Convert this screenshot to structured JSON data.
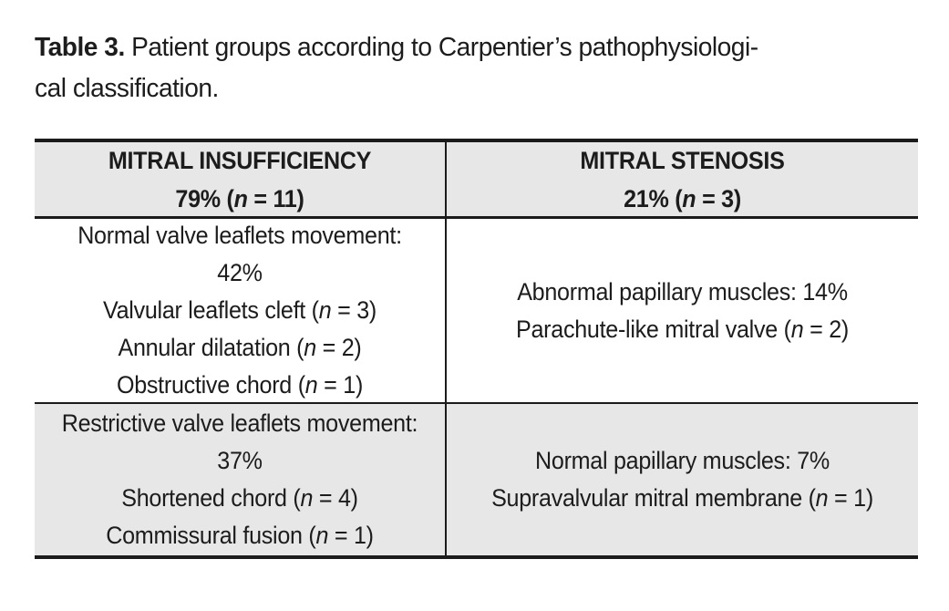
{
  "colors": {
    "text": "#1c1c1c",
    "border": "#1b1b1b",
    "header_bg": "#e7e7e8",
    "alt_row_bg": "#e7e7e8",
    "page_bg": "#ffffff"
  },
  "caption": {
    "lines": [
      [
        {
          "t": "Table 3.",
          "b": true
        },
        {
          "t": " Patient groups according to Carpentier’s pathophysiologi-"
        }
      ],
      [
        {
          "t": "cal classification."
        }
      ]
    ]
  },
  "table": {
    "header": [
      {
        "lines": [
          [
            {
              "t": "MITRAL INSUFFICIENCY"
            }
          ],
          [
            {
              "t": "79% ("
            },
            {
              "t": "n",
              "i": true
            },
            {
              "t": " = 11)"
            }
          ]
        ]
      },
      {
        "lines": [
          [
            {
              "t": "MITRAL STENOSIS"
            }
          ],
          [
            {
              "t": "21% ("
            },
            {
              "t": "n",
              "i": true
            },
            {
              "t": " = 3)"
            }
          ]
        ]
      }
    ],
    "rows": [
      {
        "cells": [
          {
            "lines": [
              [
                {
                  "t": "Normal valve leaflets movement:"
                }
              ],
              [
                {
                  "t": "42%"
                }
              ],
              [
                {
                  "t": "Valvular leaflets cleft ("
                },
                {
                  "t": "n",
                  "i": true
                },
                {
                  "t": " = 3)"
                }
              ],
              [
                {
                  "t": "Annular dilatation ("
                },
                {
                  "t": "n",
                  "i": true
                },
                {
                  "t": " = 2)"
                }
              ],
              [
                {
                  "t": "Obstructive chord ("
                },
                {
                  "t": "n",
                  "i": true
                },
                {
                  "t": " = 1)"
                }
              ]
            ]
          },
          {
            "lines": [
              [
                {
                  "t": "Abnormal papillary muscles: 14%"
                }
              ],
              [
                {
                  "t": "Parachute-like mitral valve ("
                },
                {
                  "t": "n",
                  "i": true
                },
                {
                  "t": " = 2)"
                }
              ]
            ]
          }
        ]
      },
      {
        "cells": [
          {
            "lines": [
              [
                {
                  "t": "Restrictive valve leaflets movement:"
                }
              ],
              [
                {
                  "t": "37%"
                }
              ],
              [
                {
                  "t": "Shortened chord ("
                },
                {
                  "t": "n",
                  "i": true
                },
                {
                  "t": " = 4)"
                }
              ],
              [
                {
                  "t": "Commissural fusion ("
                },
                {
                  "t": "n",
                  "i": true
                },
                {
                  "t": " = 1)"
                }
              ]
            ]
          },
          {
            "lines": [
              [
                {
                  "t": "Normal papillary muscles: 7%"
                }
              ],
              [
                {
                  "t": "Supravalvular mitral membrane ("
                },
                {
                  "t": "n",
                  "i": true
                },
                {
                  "t": " = 1)"
                }
              ]
            ]
          }
        ]
      }
    ]
  }
}
